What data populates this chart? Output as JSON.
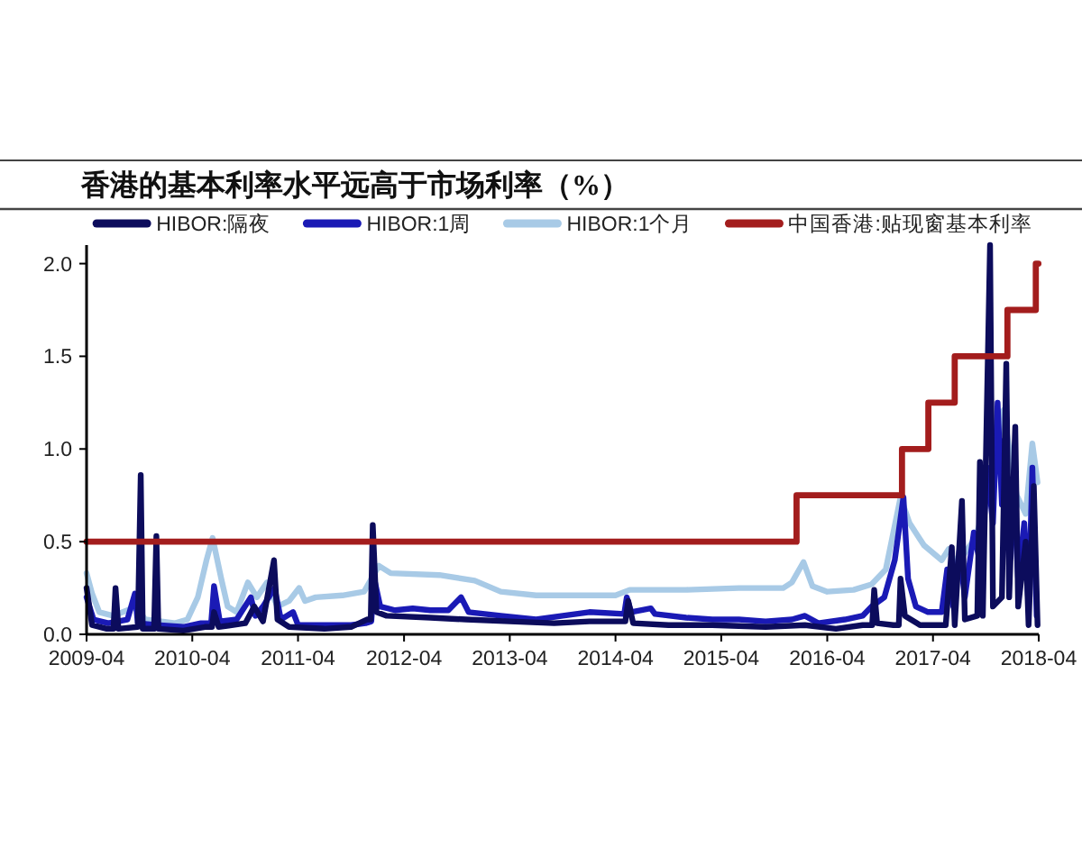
{
  "chart_data": {
    "type": "line",
    "title": "香港的基本利率水平远高于市场利率（%）",
    "legend": "top",
    "xlim": [
      "2009-04",
      "2018-04"
    ],
    "xticks": [
      "2009-04",
      "2010-04",
      "2011-04",
      "2012-04",
      "2013-04",
      "2014-04",
      "2015-04",
      "2016-04",
      "2017-04",
      "2018-04"
    ],
    "ylim": [
      0,
      2.1
    ],
    "yticks": [
      {
        "value": 0,
        "label": "0.0"
      },
      {
        "value": 0.5,
        "label": "0.5"
      },
      {
        "value": 1,
        "label": "1.0"
      },
      {
        "value": 1.5,
        "label": "1.5"
      },
      {
        "value": 2,
        "label": "2.0"
      }
    ],
    "series": [
      {
        "name": "HIBOR:隔夜",
        "color": "#0c0c5c",
        "x": [
          "2009-04-01",
          "2009-04-20",
          "2009-06-10",
          "2009-07-03",
          "2009-07-10",
          "2009-07-20",
          "2009-09-25",
          "2009-10-05",
          "2009-10-12",
          "2009-11-20",
          "2009-11-28",
          "2009-12-05",
          "2010-03-01",
          "2010-05-15",
          "2010-06-08",
          "2010-06-15",
          "2010-07-01",
          "2010-10-01",
          "2010-11-01",
          "2010-12-01",
          "2011-01-08",
          "2011-01-20",
          "2011-03-01",
          "2011-07-01",
          "2011-10-01",
          "2011-11-25",
          "2011-12-08",
          "2011-12-15",
          "2011-12-28",
          "2012-02-01",
          "2012-07-01",
          "2012-11-01",
          "2013-04-01",
          "2013-09-01",
          "2014-01-01",
          "2014-05-05",
          "2014-05-15",
          "2014-06-01",
          "2014-10-01",
          "2015-03-01",
          "2015-09-01",
          "2016-01-15",
          "2016-05-01",
          "2016-08-01",
          "2016-09-03",
          "2016-09-10",
          "2016-09-20",
          "2016-11-15",
          "2016-12-04",
          "2016-12-10",
          "2016-12-25",
          "2017-02-15",
          "2017-05-15",
          "2017-06-05",
          "2017-06-15",
          "2017-07-10",
          "2017-07-20",
          "2017-09-01",
          "2017-09-10",
          "2017-09-20",
          "2017-10-15",
          "2017-10-25",
          "2017-11-25",
          "2017-12-10",
          "2017-12-20",
          "2018-01-10",
          "2018-01-20",
          "2018-02-15",
          "2018-02-25",
          "2018-03-15",
          "2018-03-28"
        ],
        "values": [
          0.25,
          0.05,
          0.03,
          0.03,
          0.25,
          0.03,
          0.04,
          0.86,
          0.03,
          0.03,
          0.53,
          0.03,
          0.02,
          0.04,
          0.04,
          0.12,
          0.04,
          0.06,
          0.15,
          0.07,
          0.4,
          0.08,
          0.04,
          0.03,
          0.04,
          0.08,
          0.08,
          0.59,
          0.12,
          0.1,
          0.09,
          0.08,
          0.07,
          0.06,
          0.07,
          0.07,
          0.18,
          0.06,
          0.05,
          0.05,
          0.04,
          0.05,
          0.03,
          0.05,
          0.05,
          0.24,
          0.06,
          0.05,
          0.05,
          0.3,
          0.1,
          0.05,
          0.05,
          0.47,
          0.05,
          0.72,
          0.08,
          0.1,
          0.93,
          0.1,
          2.1,
          0.15,
          0.2,
          1.46,
          0.2,
          1.12,
          0.15,
          0.5,
          0.05,
          0.8,
          0.05
        ]
      },
      {
        "name": "HIBOR:1周",
        "color": "#1a1ab5",
        "x": [
          "2009-04-01",
          "2009-04-25",
          "2009-06-15",
          "2009-08-20",
          "2009-09-15",
          "2009-09-25",
          "2009-12-01",
          "2010-03-01",
          "2010-05-01",
          "2010-06-05",
          "2010-06-15",
          "2010-07-05",
          "2010-09-01",
          "2010-10-20",
          "2010-11-05",
          "2010-12-01",
          "2011-01-10",
          "2011-02-01",
          "2011-03-15",
          "2011-04-01",
          "2011-07-01",
          "2011-10-01",
          "2011-11-20",
          "2011-12-10",
          "2011-12-20",
          "2012-01-10",
          "2012-03-01",
          "2012-05-01",
          "2012-07-01",
          "2012-09-01",
          "2012-10-15",
          "2012-11-10",
          "2013-03-01",
          "2013-07-01",
          "2013-10-01",
          "2014-01-01",
          "2014-05-01",
          "2014-05-10",
          "2014-05-25",
          "2014-08-01",
          "2014-08-15",
          "2014-12-01",
          "2015-03-01",
          "2015-06-01",
          "2015-09-01",
          "2015-12-01",
          "2016-01-15",
          "2016-03-01",
          "2016-06-01",
          "2016-08-01",
          "2016-09-01",
          "2016-10-15",
          "2016-11-20",
          "2016-12-20",
          "2017-01-05",
          "2017-02-01",
          "2017-03-15",
          "2017-05-01",
          "2017-05-20",
          "2017-06-10",
          "2017-07-01",
          "2017-07-20",
          "2017-08-20",
          "2017-09-15",
          "2017-10-05",
          "2017-10-25",
          "2017-11-10",
          "2017-11-25",
          "2017-12-05",
          "2017-12-20",
          "2018-01-05",
          "2018-01-20",
          "2018-02-10",
          "2018-02-25",
          "2018-03-10",
          "2018-03-25"
        ],
        "values": [
          0.2,
          0.08,
          0.06,
          0.08,
          0.22,
          0.06,
          0.05,
          0.04,
          0.06,
          0.06,
          0.26,
          0.07,
          0.08,
          0.2,
          0.1,
          0.15,
          0.25,
          0.08,
          0.12,
          0.05,
          0.05,
          0.05,
          0.06,
          0.07,
          0.3,
          0.15,
          0.13,
          0.14,
          0.13,
          0.13,
          0.2,
          0.12,
          0.1,
          0.08,
          0.1,
          0.12,
          0.11,
          0.2,
          0.12,
          0.14,
          0.11,
          0.09,
          0.08,
          0.08,
          0.07,
          0.08,
          0.1,
          0.06,
          0.08,
          0.1,
          0.15,
          0.2,
          0.4,
          0.74,
          0.3,
          0.15,
          0.12,
          0.12,
          0.35,
          0.15,
          0.45,
          0.2,
          0.55,
          0.35,
          0.9,
          0.6,
          1.25,
          0.7,
          1.05,
          0.4,
          0.75,
          0.3,
          0.6,
          0.15,
          0.9,
          0.1
        ]
      },
      {
        "name": "HIBOR:1个月",
        "color": "#a8cae6",
        "x": [
          "2009-04-01",
          "2009-04-20",
          "2009-05-15",
          "2009-07-01",
          "2009-08-20",
          "2009-09-20",
          "2009-10-20",
          "2009-12-15",
          "2010-02-01",
          "2010-03-15",
          "2010-04-20",
          "2010-05-20",
          "2010-06-10",
          "2010-07-10",
          "2010-08-01",
          "2010-09-01",
          "2010-10-10",
          "2010-11-10",
          "2010-12-15",
          "2011-01-20",
          "2011-03-01",
          "2011-04-05",
          "2011-04-25",
          "2011-06-01",
          "2011-09-01",
          "2011-11-15",
          "2012-01-05",
          "2012-02-15",
          "2012-08-01",
          "2012-12-01",
          "2013-03-01",
          "2013-07-01",
          "2014-04-01",
          "2014-05-20",
          "2014-12-01",
          "2015-06-01",
          "2015-11-01",
          "2015-12-01",
          "2016-01-10",
          "2016-02-10",
          "2016-04-01",
          "2016-07-01",
          "2016-09-01",
          "2016-10-20",
          "2016-12-10",
          "2017-01-10",
          "2017-03-01",
          "2017-05-01",
          "2017-05-25",
          "2017-06-20",
          "2017-07-20",
          "2017-08-25",
          "2017-10-01",
          "2017-10-20",
          "2017-11-10",
          "2017-12-01",
          "2017-12-20",
          "2018-01-15",
          "2018-02-15",
          "2018-03-10",
          "2018-03-28"
        ],
        "values": [
          0.33,
          0.22,
          0.12,
          0.1,
          0.13,
          0.15,
          0.08,
          0.07,
          0.06,
          0.08,
          0.2,
          0.4,
          0.52,
          0.3,
          0.15,
          0.12,
          0.28,
          0.2,
          0.28,
          0.15,
          0.18,
          0.25,
          0.18,
          0.2,
          0.21,
          0.23,
          0.37,
          0.33,
          0.32,
          0.29,
          0.23,
          0.21,
          0.21,
          0.24,
          0.24,
          0.25,
          0.25,
          0.28,
          0.39,
          0.26,
          0.23,
          0.24,
          0.27,
          0.35,
          0.74,
          0.6,
          0.48,
          0.4,
          0.46,
          0.38,
          0.44,
          0.52,
          0.7,
          0.85,
          1.0,
          1.21,
          1.0,
          0.75,
          0.65,
          1.03,
          0.82
        ]
      },
      {
        "name": "中国香港:贴现窗基本利率",
        "type": "step",
        "color": "#a31d1d",
        "x": [
          "2009-04-01",
          "2015-12-17",
          "2016-12-15",
          "2017-03-16",
          "2017-06-15",
          "2017-12-14",
          "2018-03-22",
          "2018-03-31"
        ],
        "values": [
          0.5,
          0.75,
          1,
          1.25,
          1.5,
          1.75,
          2,
          2
        ]
      }
    ]
  }
}
